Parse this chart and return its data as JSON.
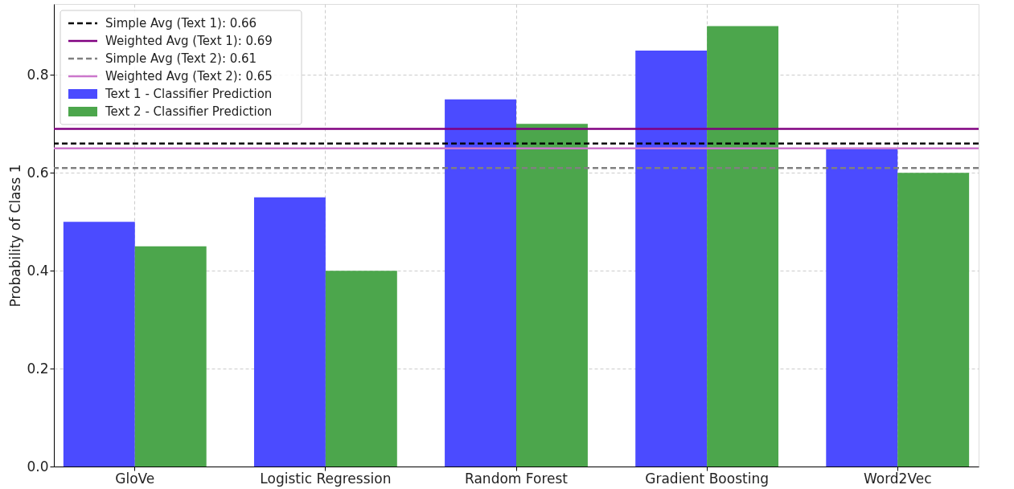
{
  "chart_data": {
    "type": "bar",
    "ylabel": "Probability of Class 1",
    "categories": [
      "GloVe",
      "Logistic Regression",
      "Random Forest",
      "Gradient Boosting",
      "Word2Vec"
    ],
    "series": [
      {
        "name": "Text 1 - Classifier Prediction",
        "color": "#4b4bff",
        "values": [
          0.5,
          0.55,
          0.75,
          0.85,
          0.65
        ]
      },
      {
        "name": "Text 2 - Classifier Prediction",
        "color": "#4ca64c",
        "values": [
          0.45,
          0.4,
          0.7,
          0.9,
          0.6
        ]
      }
    ],
    "ylim": [
      0,
      0.945
    ],
    "yticks": [
      {
        "value": 0,
        "label": "0.0"
      },
      {
        "value": 0.2,
        "label": "0.2"
      },
      {
        "value": 0.4,
        "label": "0.4"
      },
      {
        "value": 0.6,
        "label": "0.6"
      },
      {
        "value": 0.8,
        "label": "0.8"
      }
    ],
    "ref_lines": [
      {
        "axis": "y",
        "value": 0.66,
        "label": "Simple Avg (Text 1): 0.66",
        "color": "#000000",
        "line_style": "dashed"
      },
      {
        "axis": "y",
        "value": 0.69,
        "label": "Weighted Avg (Text 1): 0.69",
        "color": "#800080",
        "line_style": "solid"
      },
      {
        "axis": "y",
        "value": 0.61,
        "label": "Simple Avg (Text 2): 0.61",
        "color": "#808080",
        "line_style": "dashed"
      },
      {
        "axis": "y",
        "value": 0.65,
        "label": "Weighted Avg (Text 2): 0.65",
        "color": "#cc77cc",
        "line_style": "solid"
      }
    ],
    "grid": true,
    "legend": "top left"
  }
}
